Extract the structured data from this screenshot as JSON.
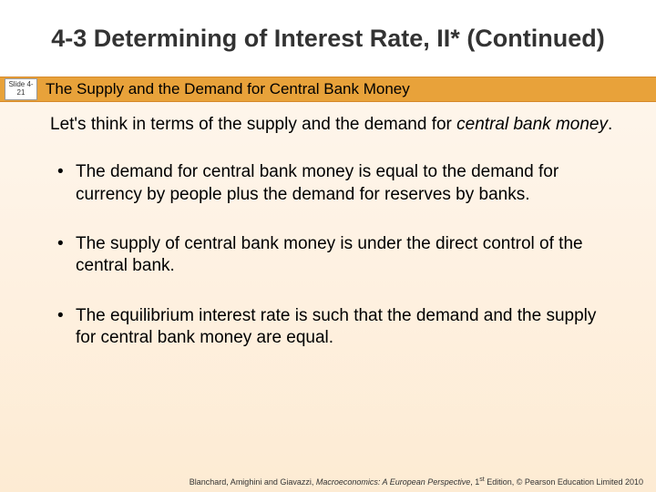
{
  "slide_label": "Slide 4-21",
  "title": "4-3  Determining of Interest Rate, II* (Continued)",
  "subtitle": "The Supply and the Demand for Central Bank Money",
  "intro_prefix": "Let's think in terms of the supply and the demand for ",
  "intro_em": "central bank money",
  "intro_suffix": ".",
  "bullets": [
    "The demand for central bank money is equal to the demand for currency by people plus the demand for reserves by banks.",
    "The supply of central bank money is under the direct control of the central bank.",
    "The equilibrium interest rate is such that the demand and the supply for central bank money are equal."
  ],
  "footer": {
    "authors": "Blanchard, Amighini and Giavazzi, ",
    "book": "Macroeconomics: A European Perspective",
    "rest": ", 1",
    "sup": "st",
    "tail": " Edition, © Pearson Education Limited 2010"
  },
  "colors": {
    "band": "#e8a23a",
    "bg_top": "#fff8f0",
    "bg_bottom": "#fdebd3"
  }
}
